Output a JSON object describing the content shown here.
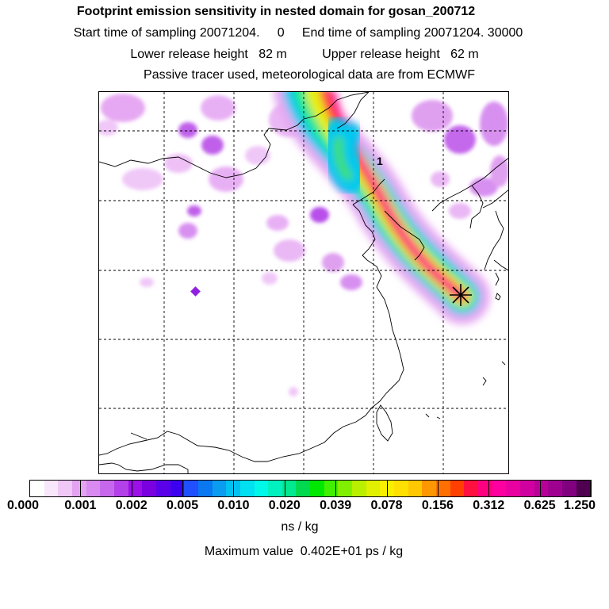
{
  "title": {
    "line1": "Footprint emission sensitivity in nested domain for gosan_200712",
    "line2": "Start time of sampling 20071204.     0     End time of sampling 20071204. 30000",
    "line3": "Lower release height   82 m          Upper release height   62 m",
    "line4": "Passive tracer used, meteorological data are from ECMWF"
  },
  "map": {
    "label_marker": "1",
    "receptor_icon": "star-icon"
  },
  "colorbar": {
    "labels": [
      "0.000",
      "0.001",
      "0.002",
      "0.005",
      "0.010",
      "0.020",
      "0.039",
      "0.078",
      "0.156",
      "0.312",
      "0.625",
      "1.250"
    ],
    "colors": [
      "#ffffff",
      "#f8e6fb",
      "#efc8f6",
      "#e3a3f0",
      "#d98af0",
      "#c768ec",
      "#b440ea",
      "#9b10e6",
      "#7a00e0",
      "#5a00e8",
      "#3b00f0",
      "#2050ff",
      "#0a78f0",
      "#0a9cf0",
      "#00c0f0",
      "#00e0f0",
      "#00f8e8",
      "#00f0c0",
      "#00e890",
      "#00d850",
      "#00e800",
      "#40f000",
      "#80f000",
      "#b8f000",
      "#e0f000",
      "#f8f000",
      "#ffe000",
      "#ffc800",
      "#ff9800",
      "#ff7000",
      "#ff4000",
      "#ff1040",
      "#ff0080",
      "#ff00a0",
      "#e800a0",
      "#d000a0",
      "#b80098",
      "#a00090",
      "#800080",
      "#500050"
    ]
  },
  "unit": "ns / kg",
  "max_value": "Maximum value  0.402E+01 ps / kg"
}
